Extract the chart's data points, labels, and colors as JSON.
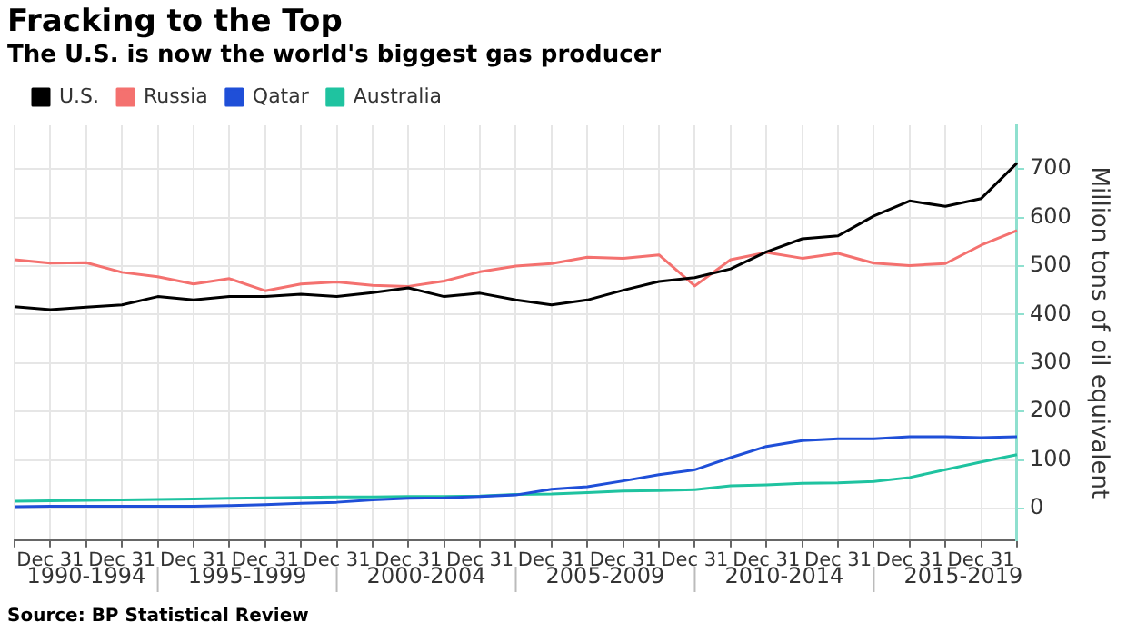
{
  "chart_data": {
    "type": "line",
    "title": "Fracking to the Top",
    "subtitle": "The U.S. is now the world's biggest gas producer",
    "ylabel": "Million tons of oil equivalent",
    "categories": [
      null,
      "Dec 31",
      null,
      "Dec 31",
      null,
      "Dec 31",
      null,
      "Dec 31",
      null,
      "Dec 31",
      null,
      "Dec 31",
      null,
      "Dec 31",
      null,
      "Dec 31",
      null,
      "Dec 31",
      null,
      "Dec 31",
      null,
      "Dec 31",
      null,
      "Dec 31",
      null,
      "Dec 31",
      null,
      "Dec 31",
      null
    ],
    "series": [
      {
        "name": "U.S.",
        "color": "#000000",
        "values": [
          416,
          410,
          415,
          420,
          437,
          430,
          437,
          437,
          442,
          437,
          445,
          455,
          437,
          444,
          430,
          420,
          430,
          450,
          468,
          476,
          494,
          529,
          556,
          562,
          603,
          634,
          623,
          639,
          712
        ]
      },
      {
        "name": "Russia",
        "color": "#f4716f",
        "values": [
          513,
          506,
          507,
          487,
          478,
          463,
          474,
          449,
          463,
          467,
          460,
          458,
          469,
          488,
          500,
          505,
          518,
          516,
          523,
          459,
          513,
          528,
          516,
          526,
          506,
          501,
          505,
          543,
          573
        ]
      },
      {
        "name": "Qatar",
        "color": "#1f4fd8",
        "values": [
          4,
          5,
          5,
          5,
          5,
          5,
          6,
          8,
          11,
          13,
          18,
          21,
          22,
          25,
          28,
          40,
          45,
          57,
          70,
          80,
          105,
          128,
          140,
          144,
          144,
          148,
          148,
          146,
          148
        ]
      },
      {
        "name": "Australia",
        "color": "#1fc3a0",
        "values": [
          15,
          16,
          17,
          18,
          19,
          20,
          21,
          22,
          23,
          24,
          24,
          25,
          25,
          26,
          29,
          30,
          33,
          36,
          37,
          39,
          47,
          49,
          52,
          53,
          56,
          64,
          80,
          96,
          111
        ]
      }
    ],
    "ylim": [
      -65,
      790
    ],
    "yticks": [
      0,
      100,
      200,
      300,
      400,
      500,
      600,
      700
    ],
    "grid": true,
    "legend": "top left",
    "line_style": "solid",
    "marker": "none",
    "annotations": [
      "1990-1994",
      "1995-1999",
      "2000-2004",
      "2005-2009",
      "2010-2014",
      "2015-2019",
      "Source: BP Statistical Review"
    ]
  }
}
